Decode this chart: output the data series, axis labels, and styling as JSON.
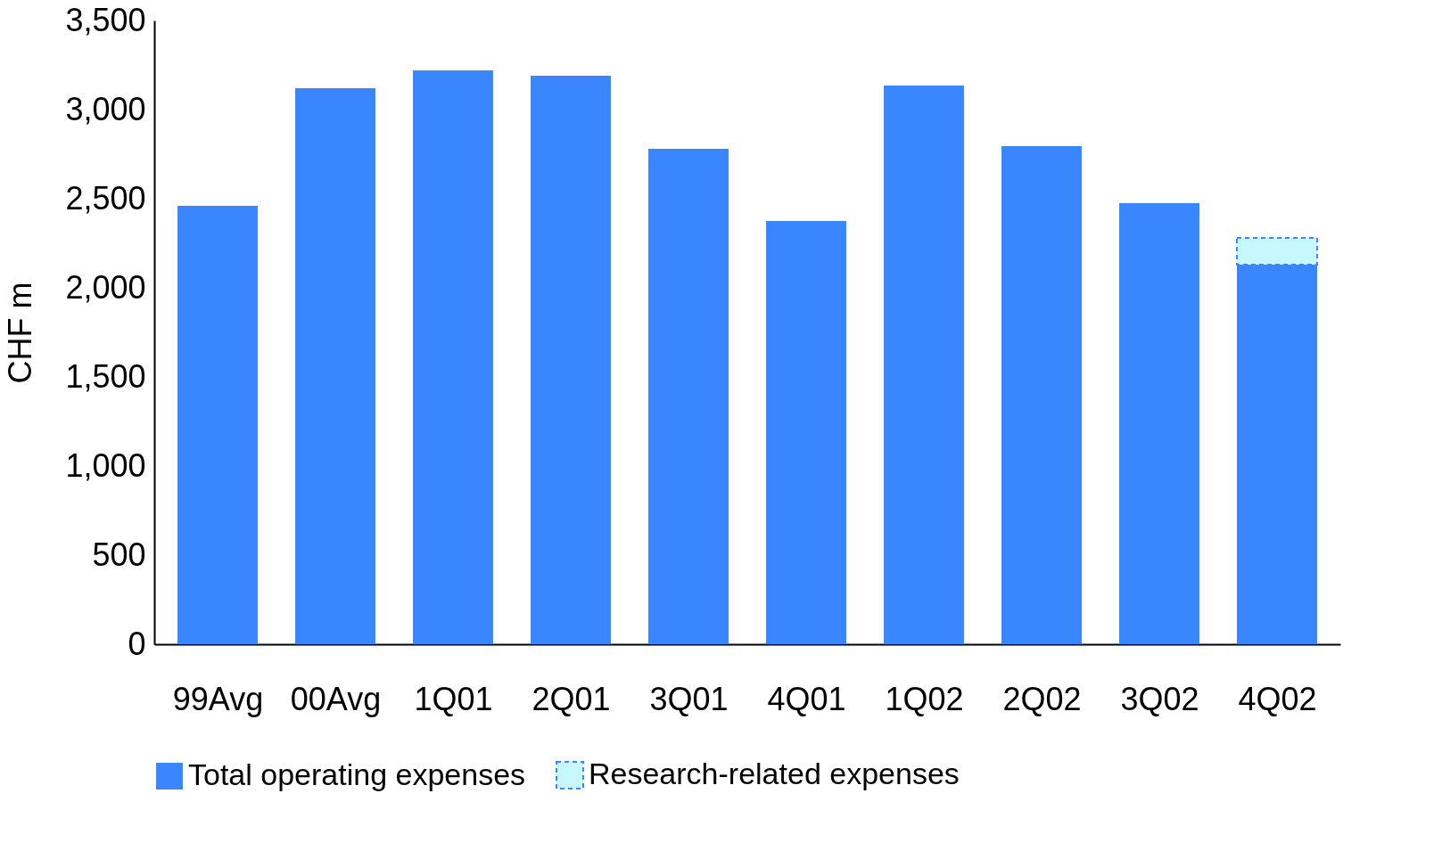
{
  "chart_data": {
    "type": "bar",
    "stacked": true,
    "ylabel": "CHF m",
    "categories": [
      "99Avg",
      "00Avg",
      "1Q01",
      "2Q01",
      "3Q01",
      "4Q01",
      "1Q02",
      "2Q02",
      "3Q02",
      "4Q02"
    ],
    "series": [
      {
        "name": "Total operating expenses",
        "color": "#3a86ff",
        "values": [
          2460,
          3120,
          3220,
          3190,
          2780,
          2375,
          3135,
          2795,
          2475,
          2130
        ]
      },
      {
        "name": "Research-related expenses",
        "color": "#c8f8ff",
        "values": [
          null,
          null,
          null,
          null,
          null,
          null,
          null,
          null,
          null,
          150
        ]
      }
    ],
    "ylim": [
      0,
      3500
    ],
    "yticks": [
      0,
      {
        "value": 500,
        "label": "500"
      },
      {
        "value": 1000,
        "label": "1,000"
      },
      {
        "value": 1500,
        "label": "1,500"
      },
      {
        "value": 2000,
        "label": "2,000"
      },
      {
        "value": 2500,
        "label": "2,500"
      },
      {
        "value": 3000,
        "label": "3,000"
      },
      {
        "value": 3500,
        "label": "3,500"
      }
    ],
    "grid": false,
    "legend": "bottom"
  }
}
